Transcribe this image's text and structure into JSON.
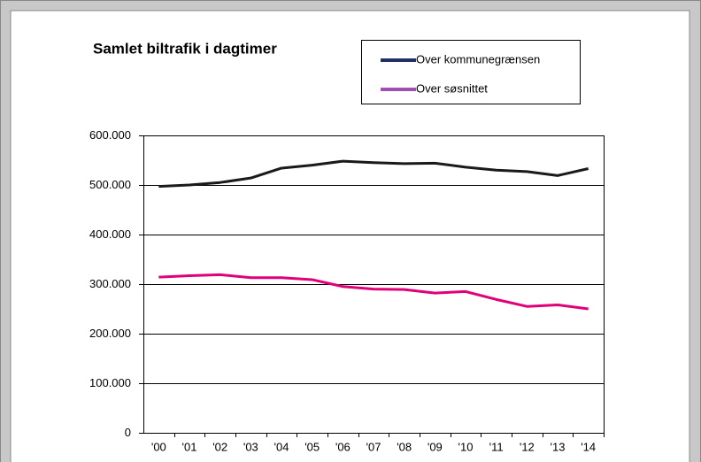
{
  "chart_data": {
    "type": "line",
    "title": "Samlet biltrafik i dagtimer",
    "categories": [
      "'00",
      "'01",
      "'02",
      "'03",
      "'04",
      "'05",
      "'06",
      "'07",
      "'08",
      "'09",
      "'10",
      "'11",
      "'12",
      "'13",
      "'14"
    ],
    "series": [
      {
        "name": "Over kommunegrænsen",
        "color": "#1a1a1a",
        "legend_color": "#1f2f6a",
        "values": [
          497000,
          500000,
          505000,
          514000,
          534000,
          540000,
          548000,
          545000,
          543000,
          544000,
          536000,
          530000,
          527000,
          519000,
          533000
        ]
      },
      {
        "name": "Over søsnittet",
        "color": "#e0007a",
        "legend_color": "#a050b0",
        "values": [
          314000,
          317000,
          319000,
          313000,
          313000,
          309000,
          295000,
          290000,
          289000,
          282000,
          285000,
          269000,
          255000,
          258000,
          250000
        ]
      }
    ],
    "ylim": [
      0,
      600000
    ],
    "yticks": [
      0,
      {
        "value": 100000,
        "label": "100.000"
      },
      {
        "value": 200000,
        "label": "200.000"
      },
      {
        "value": 300000,
        "label": "300.000"
      },
      {
        "value": 400000,
        "label": "400.000"
      },
      {
        "value": 500000,
        "label": "500.000"
      },
      {
        "value": 600000,
        "label": "600.000"
      }
    ],
    "grid": true
  }
}
